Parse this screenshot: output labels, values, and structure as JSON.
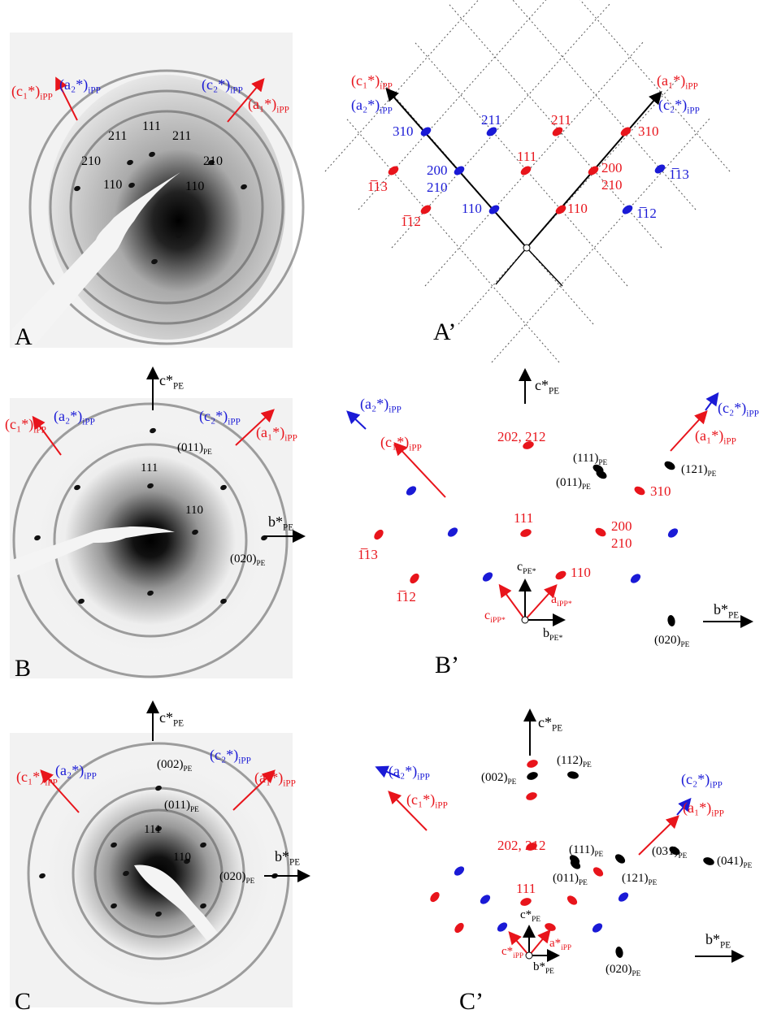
{
  "panels": {
    "A": {
      "letter": "A",
      "labels": [
        {
          "text": "(c₁*)",
          "sub": "iPP"
        },
        {
          "text": "(a₂*)",
          "sub": "iPP"
        },
        {
          "text": "(c₂*)",
          "sub": "iPP"
        },
        {
          "text": "(a₁*)",
          "sub": "iPP"
        },
        "211",
        "211",
        "111",
        "210",
        "210",
        "110",
        "110"
      ]
    },
    "A2": {
      "letter": "A’",
      "labels": [
        {
          "text": "(c₁*)",
          "sub": "iPP"
        },
        {
          "text": "(a₂*)",
          "sub": "iPP"
        },
        {
          "text": "(a₁*)",
          "sub": "iPP"
        },
        {
          "text": "(c₂*)",
          "sub": "iPP"
        },
        "310",
        "211",
        "200",
        "210",
        "110",
        "1̅13",
        "1̅12",
        "211",
        "310",
        "111",
        "200",
        "210",
        "110",
        "1̅13",
        "1̅12"
      ]
    },
    "B": {
      "letter": "B",
      "labels": [
        {
          "text": "c*",
          "sub": "PE"
        },
        {
          "text": "(c₁*)",
          "sub": "iPP"
        },
        {
          "text": "(a₂*)",
          "sub": "iPP"
        },
        {
          "text": "(c₂*)",
          "sub": "iPP"
        },
        {
          "text": "(a₁*)",
          "sub": "iPP"
        },
        {
          "text": "(011)",
          "sub": "PE"
        },
        "111",
        "110",
        {
          "text": "b*",
          "sub": "PE"
        },
        {
          "text": "(020)",
          "sub": "PE"
        }
      ]
    },
    "B2": {
      "letter": "B’",
      "labels": [
        {
          "text": "(a₂*)",
          "sub": "iPP"
        },
        {
          "text": "(c₁*)",
          "sub": "iPP"
        },
        {
          "text": "c*",
          "sub": "PE"
        },
        "202, 212",
        {
          "text": "(111)",
          "sub": "PE"
        },
        {
          "text": "(011)",
          "sub": "PE"
        },
        {
          "text": "(121)",
          "sub": "PE"
        },
        {
          "text": "(c₂*)",
          "sub": "iPP"
        },
        {
          "text": "(a₁*)",
          "sub": "iPP"
        },
        "310",
        "111",
        "200",
        "210",
        "1̅13",
        "1̅12",
        {
          "text": "c",
          "sub": "PE*"
        },
        "110",
        {
          "text": "a",
          "sub": "iPP*"
        },
        {
          "text": "c",
          "sub": "iPP*"
        },
        {
          "text": "b",
          "sub": "PE*"
        },
        {
          "text": "b*",
          "sub": "PE"
        },
        {
          "text": "(020)",
          "sub": "PE"
        }
      ]
    },
    "C": {
      "letter": "C",
      "labels": [
        {
          "text": "c*",
          "sub": "PE"
        },
        {
          "text": "(c₁*)",
          "sub": "iPP"
        },
        {
          "text": "(a₂*)",
          "sub": "iPP"
        },
        {
          "text": "(c₂*)",
          "sub": "iPP"
        },
        {
          "text": "(a₁*)",
          "sub": "iPP"
        },
        {
          "text": "(002)",
          "sub": "PE"
        },
        {
          "text": "(011)",
          "sub": "PE"
        },
        "111",
        "110",
        {
          "text": "(020)",
          "sub": "PE"
        },
        {
          "text": "b*",
          "sub": "PE"
        }
      ]
    },
    "C2": {
      "letter": "C’",
      "labels": [
        {
          "text": "c*",
          "sub": "PE"
        },
        {
          "text": "(a₂*)",
          "sub": "iPP"
        },
        {
          "text": "(c₁*)",
          "sub": "iPP"
        },
        {
          "text": "(002)",
          "sub": "PE"
        },
        {
          "text": "(112)",
          "sub": "PE"
        },
        {
          "text": "(c₂*)",
          "sub": "iPP"
        },
        {
          "text": "(a₁*)",
          "sub": "iPP"
        },
        "202, 212",
        {
          "text": "(111)",
          "sub": "PE"
        },
        {
          "text": "(011)",
          "sub": "PE"
        },
        {
          "text": "(121)",
          "sub": "PE"
        },
        {
          "text": "(031)",
          "sub": "PE"
        },
        {
          "text": "(041)",
          "sub": "PE"
        },
        "111",
        {
          "text": "c*",
          "sub": "PE"
        },
        {
          "text": "a*",
          "sub": "iPP"
        },
        {
          "text": "c*",
          "sub": "iPP"
        },
        {
          "text": "b*",
          "sub": "PE"
        },
        {
          "text": "b*",
          "sub": "PE"
        },
        {
          "text": "(020)",
          "sub": "PE"
        }
      ]
    }
  }
}
